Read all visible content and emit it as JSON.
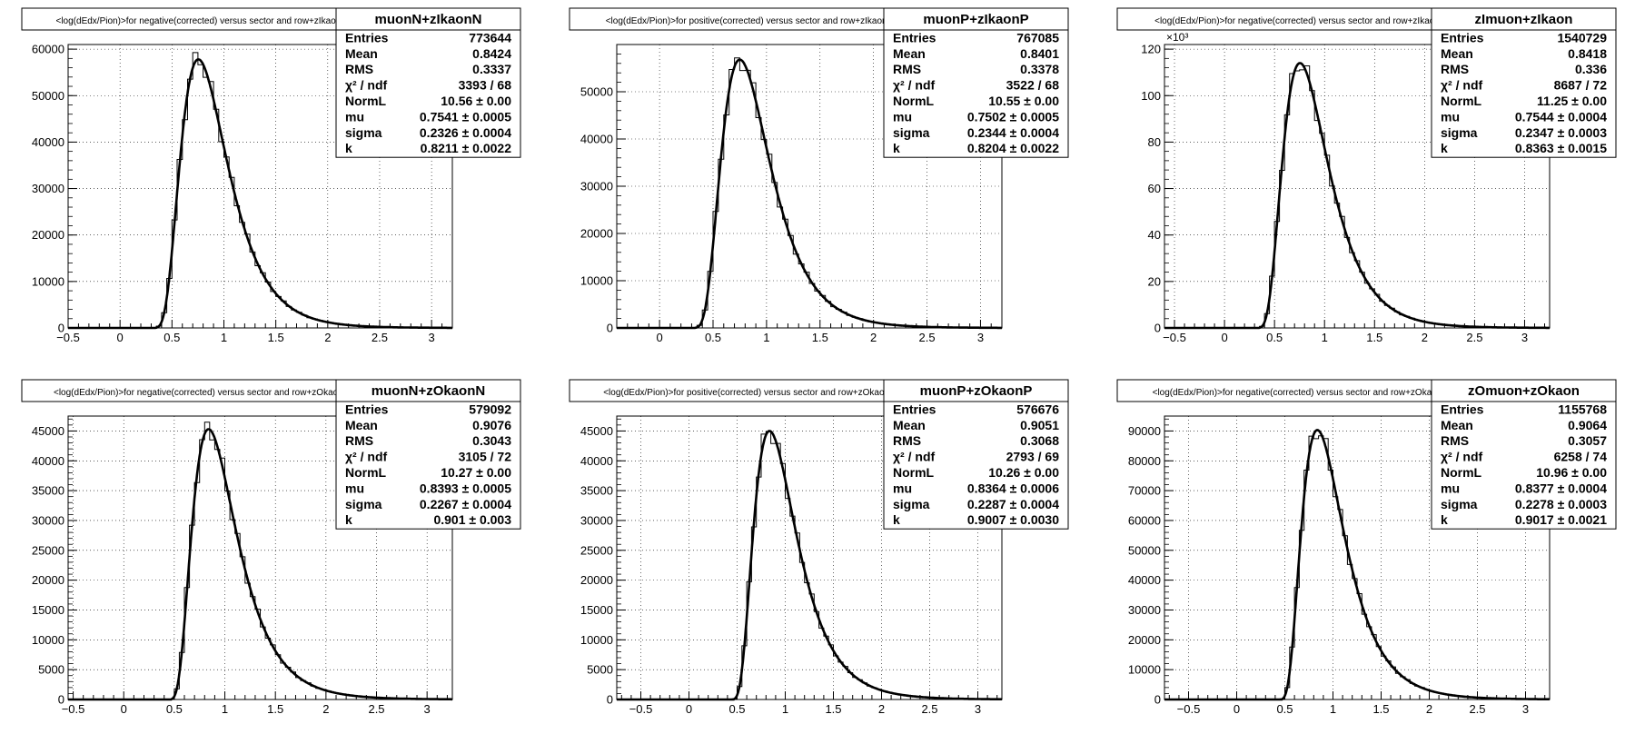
{
  "chart_data": [
    {
      "type": "histogram",
      "title": "<log(dEdx/Pion)>for negative(corrected) versus sector and row+zIkaonN",
      "stats_name": "muonN+zIkaonN",
      "stats": [
        {
          "label": "Entries",
          "value": "773644"
        },
        {
          "label": "Mean",
          "value": "0.8424"
        },
        {
          "label": "RMS",
          "value": "0.3337"
        },
        {
          "label": "χ² / ndf",
          "value": "3393 / 68"
        },
        {
          "label": "NormL",
          "value": "10.56 ± 0.00"
        },
        {
          "label": "mu",
          "value": "0.7541 ± 0.0005"
        },
        {
          "label": "sigma",
          "value": "0.2326 ± 0.0004"
        },
        {
          "label": "k",
          "value": "0.8211 ± 0.0022"
        }
      ],
      "xlim": [
        -0.5,
        3.2
      ],
      "ylim": [
        0,
        61000
      ],
      "xticks": [
        -0.5,
        0,
        0.5,
        1,
        1.5,
        2,
        2.5,
        3
      ],
      "xtick_labels": [
        "−0.5",
        "0",
        "0.5",
        "1",
        "1.5",
        "2",
        "2.5",
        "3"
      ],
      "yticks": [
        0,
        10000,
        20000,
        30000,
        40000,
        50000,
        60000
      ],
      "ytick_labels": [
        "0",
        "10000",
        "20000",
        "30000",
        "40000",
        "50000",
        "60000"
      ],
      "exponent_label": "",
      "peak": {
        "mu": 0.7541,
        "sigma": 0.2326,
        "k": 0.8211,
        "height": 57800
      }
    },
    {
      "type": "histogram",
      "title": "<log(dEdx/Pion)>for positive(corrected) versus sector and row+zIkaonP",
      "stats_name": "muonP+zIkaonP",
      "stats": [
        {
          "label": "Entries",
          "value": "767085"
        },
        {
          "label": "Mean",
          "value": "0.8401"
        },
        {
          "label": "RMS",
          "value": "0.3378"
        },
        {
          "label": "χ² / ndf",
          "value": "3522 / 68"
        },
        {
          "label": "NormL",
          "value": "10.55 ± 0.00"
        },
        {
          "label": "mu",
          "value": "0.7502 ± 0.0005"
        },
        {
          "label": "sigma",
          "value": "0.2344 ± 0.0004"
        },
        {
          "label": "k",
          "value": "0.8204 ± 0.0022"
        }
      ],
      "xlim": [
        -0.4,
        3.2
      ],
      "ylim": [
        0,
        60000
      ],
      "xticks": [
        0,
        0.5,
        1,
        1.5,
        2,
        2.5,
        3
      ],
      "xtick_labels": [
        "0",
        "0.5",
        "1",
        "1.5",
        "2",
        "2.5",
        "3"
      ],
      "yticks": [
        0,
        10000,
        20000,
        30000,
        40000,
        50000
      ],
      "ytick_labels": [
        "0",
        "10000",
        "20000",
        "30000",
        "40000",
        "50000"
      ],
      "exponent_label": "",
      "peak": {
        "mu": 0.7502,
        "sigma": 0.2344,
        "k": 0.8204,
        "height": 56800
      }
    },
    {
      "type": "histogram",
      "title": "<log(dEdx/Pion)>for negative(corrected) versus sector and row+zIkaon",
      "stats_name": "zImuon+zIkaon",
      "stats": [
        {
          "label": "Entries",
          "value": "1540729"
        },
        {
          "label": "Mean",
          "value": "0.8418"
        },
        {
          "label": "RMS",
          "value": "0.336"
        },
        {
          "label": "χ² / ndf",
          "value": "8687 / 72"
        },
        {
          "label": "NormL",
          "value": "11.25 ± 0.00"
        },
        {
          "label": "mu",
          "value": "0.7544 ± 0.0004"
        },
        {
          "label": "sigma",
          "value": "0.2347 ± 0.0003"
        },
        {
          "label": "k",
          "value": "0.8363 ± 0.0015"
        }
      ],
      "xlim": [
        -0.6,
        3.25
      ],
      "ylim": [
        0,
        122000
      ],
      "xticks": [
        -0.5,
        0,
        0.5,
        1,
        1.5,
        2,
        2.5,
        3
      ],
      "xtick_labels": [
        "−0.5",
        "0",
        "0.5",
        "1",
        "1.5",
        "2",
        "2.5",
        "3"
      ],
      "yticks": [
        0,
        20000,
        40000,
        60000,
        80000,
        100000,
        120000
      ],
      "ytick_labels": [
        "0",
        "20",
        "40",
        "60",
        "80",
        "100",
        "120"
      ],
      "exponent_label": "×10³",
      "peak": {
        "mu": 0.7544,
        "sigma": 0.2347,
        "k": 0.8363,
        "height": 114000
      }
    },
    {
      "type": "histogram",
      "title": "<log(dEdx/Pion)>for negative(corrected) versus sector and row+zOkaonN",
      "stats_name": "muonN+zOkaonN",
      "stats": [
        {
          "label": "Entries",
          "value": "579092"
        },
        {
          "label": "Mean",
          "value": "0.9076"
        },
        {
          "label": "RMS",
          "value": "0.3043"
        },
        {
          "label": "χ² / ndf",
          "value": "3105 / 72"
        },
        {
          "label": "NormL",
          "value": "10.27 ± 0.00"
        },
        {
          "label": "mu",
          "value": "0.8393 ± 0.0005"
        },
        {
          "label": "sigma",
          "value": "0.2267 ± 0.0004"
        },
        {
          "label": "k",
          "value": "0.901 ± 0.003"
        }
      ],
      "xlim": [
        -0.55,
        3.25
      ],
      "ylim": [
        0,
        47500
      ],
      "xticks": [
        -0.5,
        0,
        0.5,
        1,
        1.5,
        2,
        2.5,
        3
      ],
      "xtick_labels": [
        "−0.5",
        "0",
        "0.5",
        "1",
        "1.5",
        "2",
        "2.5",
        "3"
      ],
      "yticks": [
        0,
        5000,
        10000,
        15000,
        20000,
        25000,
        30000,
        35000,
        40000,
        45000
      ],
      "ytick_labels": [
        "0",
        "5000",
        "10000",
        "15000",
        "20000",
        "25000",
        "30000",
        "35000",
        "40000",
        "45000"
      ],
      "exponent_label": "",
      "peak": {
        "mu": 0.8393,
        "sigma": 0.2267,
        "k": 0.901,
        "height": 45300
      }
    },
    {
      "type": "histogram",
      "title": "<log(dEdx/Pion)>for positive(corrected) versus sector and row+zOkaonP",
      "stats_name": "muonP+zOkaonP",
      "stats": [
        {
          "label": "Entries",
          "value": "576676"
        },
        {
          "label": "Mean",
          "value": "0.9051"
        },
        {
          "label": "RMS",
          "value": "0.3068"
        },
        {
          "label": "χ² / ndf",
          "value": "2793 / 69"
        },
        {
          "label": "NormL",
          "value": "10.26 ± 0.00"
        },
        {
          "label": "mu",
          "value": "0.8364 ± 0.0006"
        },
        {
          "label": "sigma",
          "value": "0.2287 ± 0.0004"
        },
        {
          "label": "k",
          "value": "0.9007 ± 0.0030"
        }
      ],
      "xlim": [
        -0.75,
        3.25
      ],
      "ylim": [
        0,
        47500
      ],
      "xticks": [
        -0.5,
        0,
        0.5,
        1,
        1.5,
        2,
        2.5,
        3
      ],
      "xtick_labels": [
        "−0.5",
        "0",
        "0.5",
        "1",
        "1.5",
        "2",
        "2.5",
        "3"
      ],
      "yticks": [
        0,
        5000,
        10000,
        15000,
        20000,
        25000,
        30000,
        35000,
        40000,
        45000
      ],
      "ytick_labels": [
        "0",
        "5000",
        "10000",
        "15000",
        "20000",
        "25000",
        "30000",
        "35000",
        "40000",
        "45000"
      ],
      "exponent_label": "",
      "peak": {
        "mu": 0.8364,
        "sigma": 0.2287,
        "k": 0.9007,
        "height": 45000
      }
    },
    {
      "type": "histogram",
      "title": "<log(dEdx/Pion)>for negative(corrected) versus sector and row+zOkaon",
      "stats_name": "zOmuon+zOkaon",
      "stats": [
        {
          "label": "Entries",
          "value": "1155768"
        },
        {
          "label": "Mean",
          "value": "0.9064"
        },
        {
          "label": "RMS",
          "value": "0.3057"
        },
        {
          "label": "χ² / ndf",
          "value": "6258 / 74"
        },
        {
          "label": "NormL",
          "value": "10.96 ± 0.00"
        },
        {
          "label": "mu",
          "value": "0.8377 ± 0.0004"
        },
        {
          "label": "sigma",
          "value": "0.2278 ± 0.0003"
        },
        {
          "label": "k",
          "value": "0.9017 ± 0.0021"
        }
      ],
      "xlim": [
        -0.75,
        3.25
      ],
      "ylim": [
        0,
        95000
      ],
      "xticks": [
        -0.5,
        0,
        0.5,
        1,
        1.5,
        2,
        2.5,
        3
      ],
      "xtick_labels": [
        "−0.5",
        "0",
        "0.5",
        "1",
        "1.5",
        "2",
        "2.5",
        "3"
      ],
      "yticks": [
        0,
        10000,
        20000,
        30000,
        40000,
        50000,
        60000,
        70000,
        80000,
        90000
      ],
      "ytick_labels": [
        "0",
        "10000",
        "20000",
        "30000",
        "40000",
        "50000",
        "60000",
        "70000",
        "80000",
        "90000"
      ],
      "exponent_label": "",
      "peak": {
        "mu": 0.8377,
        "sigma": 0.2278,
        "k": 0.9017,
        "height": 90300
      }
    }
  ]
}
